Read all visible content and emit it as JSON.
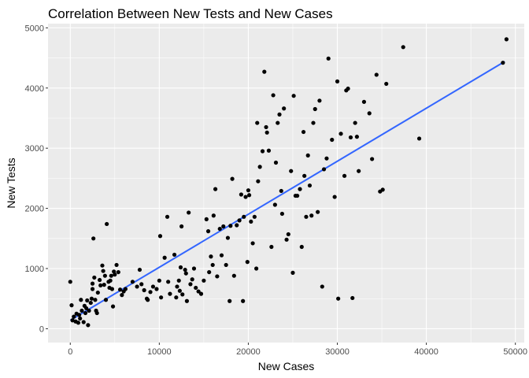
{
  "chart_data": {
    "type": "scatter",
    "title": "Correlation Between New Tests and New Cases",
    "xlabel": "New Cases",
    "ylabel": "New Tests",
    "xlim": [
      -2500,
      51000
    ],
    "ylim": [
      -230,
      5070
    ],
    "x_ticks": [
      0,
      10000,
      20000,
      30000,
      40000,
      50000
    ],
    "x_tick_labels": [
      "0",
      "10000",
      "20000",
      "30000",
      "40000",
      "50000"
    ],
    "y_ticks": [
      0,
      1000,
      2000,
      3000,
      4000,
      5000
    ],
    "y_tick_labels": [
      "0",
      "1000",
      "2000",
      "3000",
      "4000",
      "5000"
    ],
    "grid": true,
    "point_color": "#000000",
    "trend_color": "#3366FF",
    "trend_line": {
      "x": [
        0,
        48800
      ],
      "y": [
        140,
        4440
      ]
    },
    "points": [
      [
        0,
        780
      ],
      [
        150,
        390
      ],
      [
        250,
        140
      ],
      [
        400,
        200
      ],
      [
        600,
        120
      ],
      [
        700,
        250
      ],
      [
        900,
        100
      ],
      [
        1000,
        230
      ],
      [
        1100,
        170
      ],
      [
        1200,
        480
      ],
      [
        1300,
        300
      ],
      [
        1500,
        110
      ],
      [
        1600,
        380
      ],
      [
        1700,
        260
      ],
      [
        1800,
        340
      ],
      [
        1900,
        470
      ],
      [
        2000,
        60
      ],
      [
        2100,
        300
      ],
      [
        2300,
        430
      ],
      [
        2400,
        500
      ],
      [
        2500,
        660
      ],
      [
        2500,
        750
      ],
      [
        2600,
        1500
      ],
      [
        2700,
        850
      ],
      [
        2800,
        480
      ],
      [
        2900,
        300
      ],
      [
        3000,
        260
      ],
      [
        3100,
        600
      ],
      [
        3300,
        810
      ],
      [
        3400,
        720
      ],
      [
        3600,
        1050
      ],
      [
        3700,
        960
      ],
      [
        3800,
        730
      ],
      [
        3900,
        880
      ],
      [
        4000,
        480
      ],
      [
        4100,
        1740
      ],
      [
        4300,
        780
      ],
      [
        4400,
        680
      ],
      [
        4500,
        800
      ],
      [
        4600,
        880
      ],
      [
        4700,
        660
      ],
      [
        4800,
        370
      ],
      [
        4900,
        950
      ],
      [
        5000,
        900
      ],
      [
        5200,
        1060
      ],
      [
        5400,
        940
      ],
      [
        5600,
        650
      ],
      [
        5800,
        560
      ],
      [
        6000,
        620
      ],
      [
        6200,
        660
      ],
      [
        7000,
        780
      ],
      [
        7500,
        700
      ],
      [
        7800,
        980
      ],
      [
        8000,
        740
      ],
      [
        8300,
        640
      ],
      [
        8600,
        500
      ],
      [
        8700,
        480
      ],
      [
        9000,
        610
      ],
      [
        9300,
        700
      ],
      [
        9700,
        660
      ],
      [
        10000,
        800
      ],
      [
        10100,
        1540
      ],
      [
        10200,
        520
      ],
      [
        10600,
        1180
      ],
      [
        10900,
        1860
      ],
      [
        11000,
        780
      ],
      [
        11200,
        580
      ],
      [
        11700,
        1230
      ],
      [
        11900,
        520
      ],
      [
        12000,
        700
      ],
      [
        12200,
        800
      ],
      [
        12300,
        630
      ],
      [
        12400,
        1020
      ],
      [
        12500,
        1700
      ],
      [
        12600,
        570
      ],
      [
        12900,
        980
      ],
      [
        13000,
        920
      ],
      [
        13100,
        460
      ],
      [
        13300,
        1930
      ],
      [
        13500,
        740
      ],
      [
        13700,
        820
      ],
      [
        13900,
        1000
      ],
      [
        14100,
        680
      ],
      [
        14400,
        620
      ],
      [
        14700,
        580
      ],
      [
        15000,
        800
      ],
      [
        15300,
        1820
      ],
      [
        15500,
        1620
      ],
      [
        15600,
        940
      ],
      [
        15800,
        1200
      ],
      [
        16000,
        1060
      ],
      [
        16100,
        1880
      ],
      [
        16300,
        2320
      ],
      [
        16500,
        870
      ],
      [
        16800,
        1660
      ],
      [
        17000,
        1220
      ],
      [
        17200,
        1700
      ],
      [
        17500,
        1060
      ],
      [
        17700,
        1510
      ],
      [
        17900,
        460
      ],
      [
        18000,
        1710
      ],
      [
        18200,
        2490
      ],
      [
        18400,
        880
      ],
      [
        18700,
        1720
      ],
      [
        19000,
        1800
      ],
      [
        19200,
        2230
      ],
      [
        19400,
        460
      ],
      [
        19500,
        1860
      ],
      [
        19700,
        2190
      ],
      [
        19900,
        1110
      ],
      [
        20000,
        2300
      ],
      [
        20100,
        2220
      ],
      [
        20300,
        1780
      ],
      [
        20500,
        1420
      ],
      [
        20700,
        1860
      ],
      [
        20900,
        1000
      ],
      [
        21000,
        3420
      ],
      [
        21100,
        2450
      ],
      [
        21300,
        2690
      ],
      [
        21600,
        2950
      ],
      [
        21800,
        4270
      ],
      [
        22000,
        3350
      ],
      [
        22100,
        3260
      ],
      [
        22300,
        2960
      ],
      [
        22600,
        1360
      ],
      [
        22800,
        3880
      ],
      [
        23000,
        2060
      ],
      [
        23100,
        2760
      ],
      [
        23300,
        3420
      ],
      [
        23500,
        3560
      ],
      [
        23700,
        2290
      ],
      [
        23800,
        1910
      ],
      [
        24000,
        3660
      ],
      [
        24300,
        1480
      ],
      [
        24500,
        1570
      ],
      [
        24800,
        2620
      ],
      [
        25000,
        930
      ],
      [
        25100,
        3870
      ],
      [
        25300,
        2210
      ],
      [
        25500,
        2210
      ],
      [
        25800,
        2320
      ],
      [
        26000,
        1360
      ],
      [
        26200,
        3270
      ],
      [
        26300,
        2540
      ],
      [
        26500,
        1860
      ],
      [
        26700,
        2880
      ],
      [
        26900,
        2380
      ],
      [
        27100,
        1880
      ],
      [
        27300,
        3420
      ],
      [
        27500,
        3650
      ],
      [
        27800,
        1940
      ],
      [
        28000,
        3790
      ],
      [
        28300,
        700
      ],
      [
        28500,
        2650
      ],
      [
        28800,
        2830
      ],
      [
        29000,
        4490
      ],
      [
        29400,
        3140
      ],
      [
        29700,
        2190
      ],
      [
        30000,
        4110
      ],
      [
        30100,
        500
      ],
      [
        30400,
        3240
      ],
      [
        30800,
        2540
      ],
      [
        31200,
        3990
      ],
      [
        31500,
        3180
      ],
      [
        31700,
        510
      ],
      [
        32000,
        3420
      ],
      [
        32400,
        2620
      ],
      [
        33000,
        3770
      ],
      [
        33600,
        3580
      ],
      [
        33900,
        2820
      ],
      [
        34400,
        4220
      ],
      [
        34800,
        2280
      ],
      [
        35100,
        2310
      ],
      [
        35500,
        4070
      ],
      [
        37400,
        4680
      ],
      [
        39200,
        3160
      ],
      [
        48600,
        4420
      ],
      [
        49000,
        4810
      ],
      [
        31000,
        3960
      ],
      [
        32200,
        3190
      ]
    ]
  }
}
